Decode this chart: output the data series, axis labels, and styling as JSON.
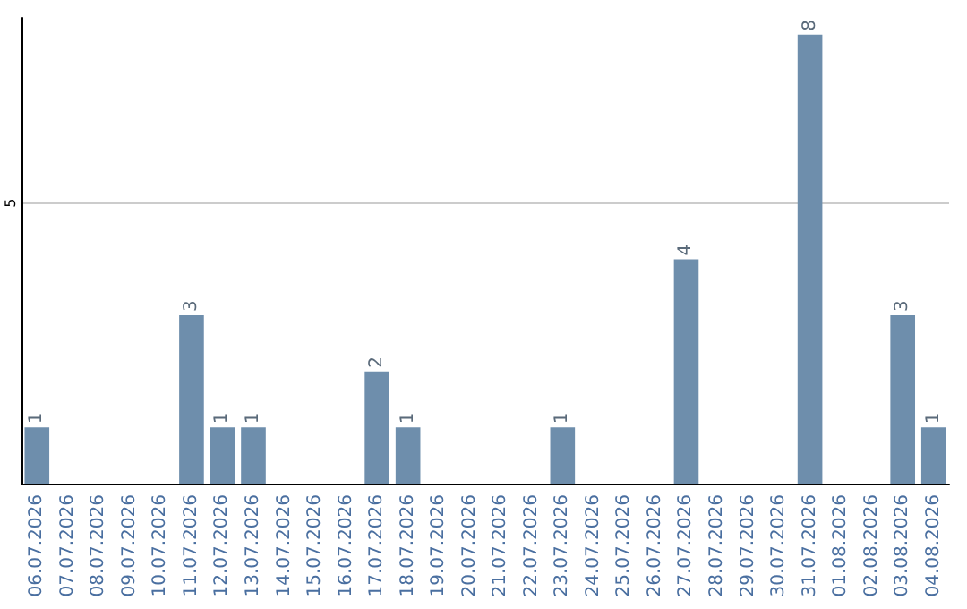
{
  "chart_data": {
    "type": "bar",
    "categories": [
      "06.07.2026",
      "07.07.2026",
      "08.07.2026",
      "09.07.2026",
      "10.07.2026",
      "11.07.2026",
      "12.07.2026",
      "13.07.2026",
      "14.07.2026",
      "15.07.2026",
      "16.07.2026",
      "17.07.2026",
      "18.07.2026",
      "19.07.2026",
      "20.07.2026",
      "21.07.2026",
      "22.07.2026",
      "23.07.2026",
      "24.07.2026",
      "25.07.2026",
      "26.07.2026",
      "27.07.2026",
      "28.07.2026",
      "29.07.2026",
      "30.07.2026",
      "31.07.2026",
      "01.08.2026",
      "02.08.2026",
      "03.08.2026",
      "04.08.2026"
    ],
    "values": [
      1,
      0,
      0,
      0,
      0,
      3,
      1,
      1,
      0,
      0,
      0,
      2,
      1,
      0,
      0,
      0,
      0,
      1,
      0,
      0,
      0,
      4,
      0,
      0,
      0,
      8,
      0,
      0,
      3,
      1
    ],
    "value_labels": [
      "1",
      null,
      null,
      null,
      null,
      "3",
      "1",
      "1",
      null,
      null,
      null,
      "2",
      "1",
      null,
      null,
      null,
      null,
      "1",
      null,
      null,
      null,
      "4",
      null,
      null,
      null,
      "8",
      null,
      null,
      "3",
      "1"
    ],
    "color": "#6e8eac",
    "ylim": [
      0,
      8.3
    ],
    "yticks": [
      5
    ],
    "grid": "y"
  }
}
